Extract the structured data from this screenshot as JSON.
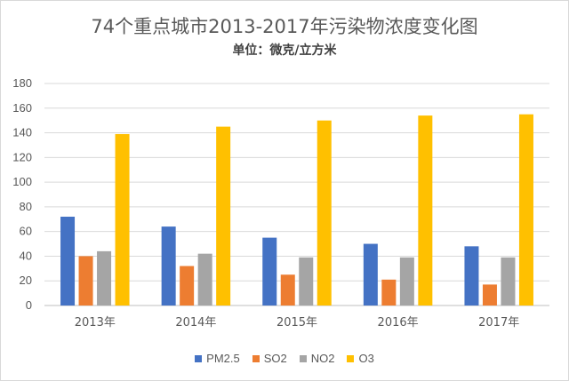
{
  "chart_data": {
    "type": "bar",
    "title": "74个重点城市2013-2017年污染物浓度变化图",
    "subtitle": "单位：微克/立方米",
    "categories": [
      "2013年",
      "2014年",
      "2015年",
      "2016年",
      "2017年"
    ],
    "series": [
      {
        "name": "PM2.5",
        "color": "#4472c4",
        "values": [
          72,
          64,
          55,
          50,
          48
        ]
      },
      {
        "name": "SO2",
        "color": "#ed7d31",
        "values": [
          40,
          32,
          25,
          21,
          17
        ]
      },
      {
        "name": "NO2",
        "color": "#a5a5a5",
        "values": [
          44,
          42,
          39,
          39,
          39
        ]
      },
      {
        "name": "O3",
        "color": "#ffc000",
        "values": [
          139,
          145,
          150,
          154,
          155
        ]
      }
    ],
    "ylim": [
      0,
      180
    ],
    "yticks": [
      0,
      20,
      40,
      60,
      80,
      100,
      120,
      140,
      160,
      180
    ],
    "grid": true,
    "legend_position": "bottom"
  }
}
